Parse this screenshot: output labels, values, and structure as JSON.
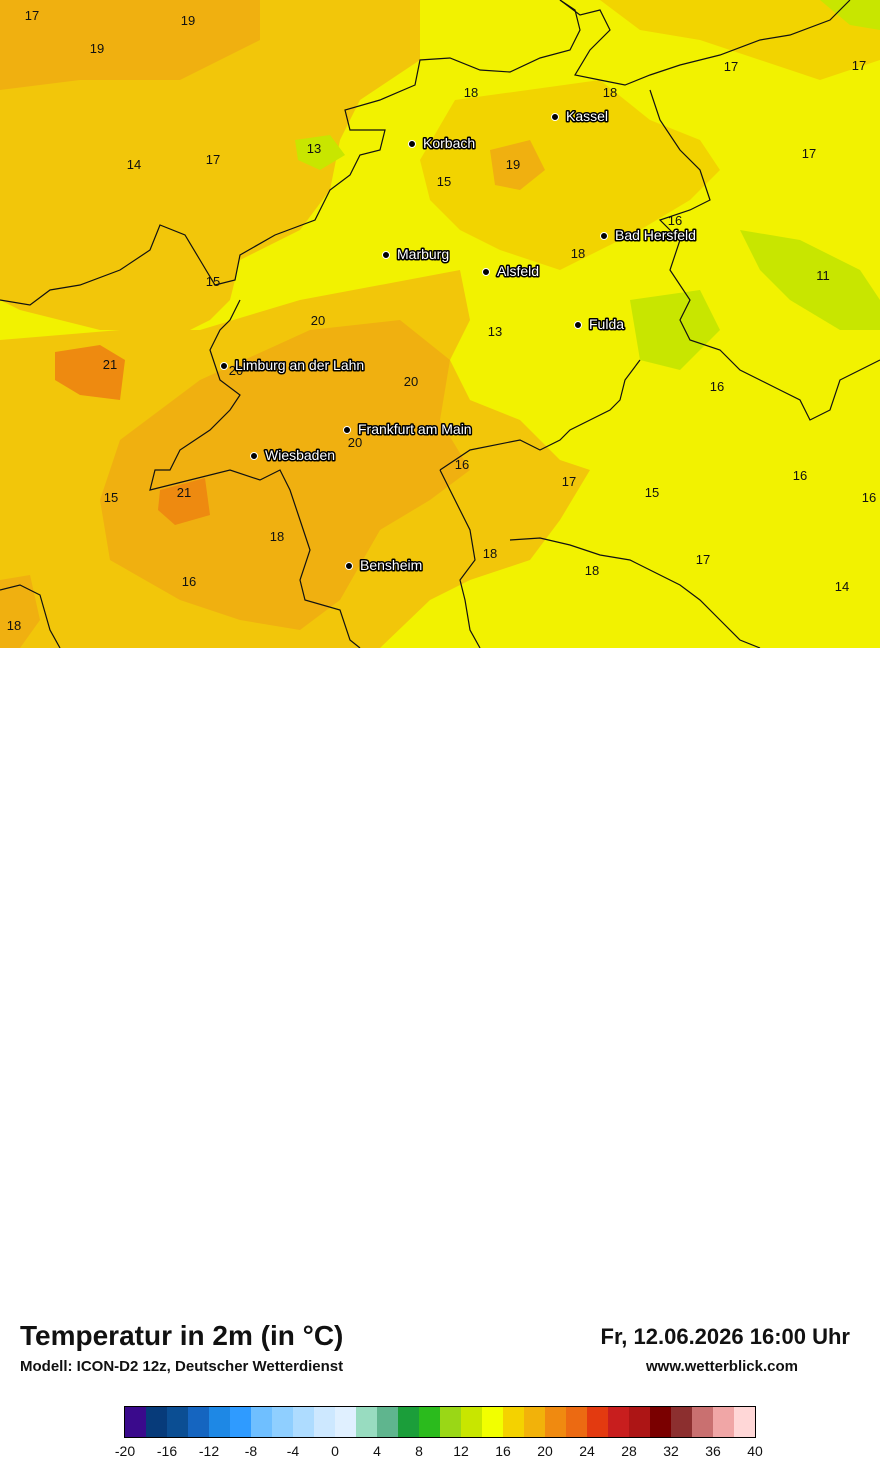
{
  "map": {
    "cities": [
      {
        "name": "Kassel",
        "lon": 9.48,
        "lat": 51.31
      },
      {
        "name": "Korbach",
        "lon": 8.87,
        "lat": 51.27
      },
      {
        "name": "Bad Hersfeld",
        "lon": 9.71,
        "lat": 50.87
      },
      {
        "name": "Marburg",
        "lon": 8.77,
        "lat": 50.81
      },
      {
        "name": "Alsfeld",
        "lon": 9.27,
        "lat": 50.75
      },
      {
        "name": "Fulda",
        "lon": 9.68,
        "lat": 50.55
      },
      {
        "name": "Limburg an der Lahn",
        "lon": 8.06,
        "lat": 50.39
      },
      {
        "name": "Frankfurt am Main",
        "lon": 8.68,
        "lat": 50.11
      },
      {
        "name": "Wiesbaden",
        "lon": 8.24,
        "lat": 50.08
      },
      {
        "name": "Bensheim",
        "lon": 8.62,
        "lat": 49.68
      }
    ],
    "temperatures": [
      {
        "value": "17"
      },
      {
        "value": "19"
      },
      {
        "value": "19"
      },
      {
        "value": "18"
      },
      {
        "value": "17"
      },
      {
        "value": "17"
      },
      {
        "value": "18"
      },
      {
        "value": "13"
      },
      {
        "value": "14"
      },
      {
        "value": "17"
      },
      {
        "value": "19"
      },
      {
        "value": "17"
      },
      {
        "value": "15"
      },
      {
        "value": "16"
      },
      {
        "value": "18"
      },
      {
        "value": "11"
      },
      {
        "value": "15"
      },
      {
        "value": "20"
      },
      {
        "value": "13"
      },
      {
        "value": "21"
      },
      {
        "value": "20"
      },
      {
        "value": "20"
      },
      {
        "value": "16"
      },
      {
        "value": "20"
      },
      {
        "value": "16"
      },
      {
        "value": "17"
      },
      {
        "value": "15"
      },
      {
        "value": "16"
      },
      {
        "value": "16"
      },
      {
        "value": "15"
      },
      {
        "value": "21"
      },
      {
        "value": "18"
      },
      {
        "value": "18"
      },
      {
        "value": "17"
      },
      {
        "value": "16"
      },
      {
        "value": "18"
      },
      {
        "value": "14"
      },
      {
        "value": "18"
      }
    ]
  },
  "footer": {
    "title": "Temperatur in 2m (in °C)",
    "model": "Modell: ICON-D2 12z, Deutscher Wetterdienst",
    "datetime": "Fr, 12.06.2026 16:00 Uhr",
    "website": "www.wetterblick.com"
  },
  "legend": {
    "colors": [
      "#3a0a8c",
      "#073b7a",
      "#0b4e93",
      "#1565c0",
      "#1e88e5",
      "#2f9bff",
      "#6fbfff",
      "#8fcfff",
      "#aedcff",
      "#cde8ff",
      "#e0f0ff",
      "#98dcc0",
      "#5fb58e",
      "#1b9e3a",
      "#2bbb1d",
      "#9ad716",
      "#c8e600",
      "#f2ff00",
      "#f4d200",
      "#f2b20a",
      "#f08a10",
      "#ec6a12",
      "#e33a10",
      "#c81e1e",
      "#ad1515",
      "#7a0000",
      "#8c2f2f",
      "#c97070",
      "#f0a6a6",
      "#ffd7d7"
    ],
    "ticks": [
      "-20",
      "-16",
      "-12",
      "-8",
      "-4",
      "0",
      "4",
      "8",
      "12",
      "16",
      "20",
      "24",
      "28",
      "32",
      "36",
      "40"
    ]
  }
}
